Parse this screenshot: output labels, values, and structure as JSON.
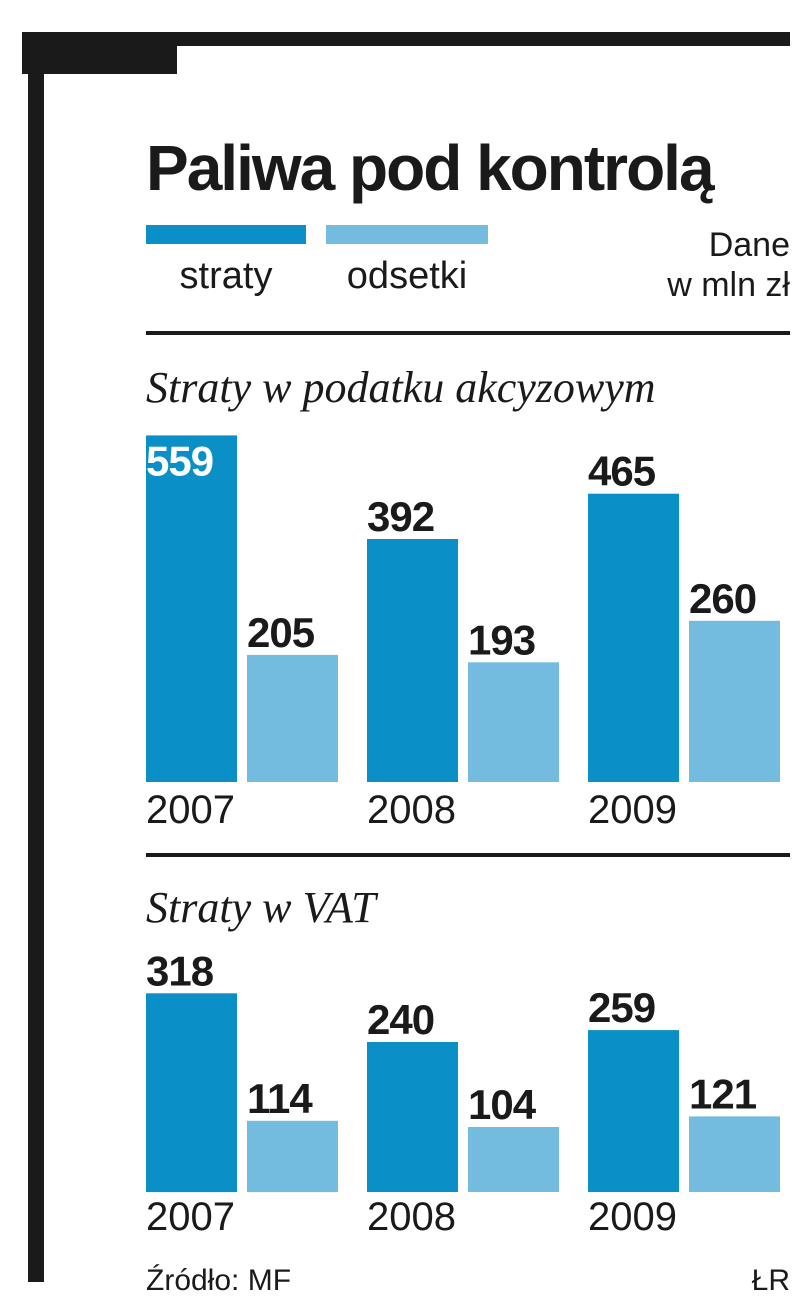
{
  "title": "Paliwa pod kontrolą",
  "legend": {
    "series1": "straty",
    "series2": "odsetki",
    "unit_line1": "Dane",
    "unit_line2": "w mln zł"
  },
  "colors": {
    "straty": "#0a8fc6",
    "odsetki": "#74bbe0",
    "frame": "#1a1a1a"
  },
  "source": "Źródło: MF",
  "credit": "ŁR",
  "chart_data": [
    {
      "type": "bar",
      "title": "Straty w podatku akcyzowym",
      "categories": [
        "2007",
        "2008",
        "2009"
      ],
      "series": [
        {
          "name": "straty",
          "values": [
            559,
            392,
            465
          ]
        },
        {
          "name": "odsetki",
          "values": [
            205,
            193,
            260
          ]
        }
      ]
    },
    {
      "type": "bar",
      "title": "Straty w VAT",
      "categories": [
        "2007",
        "2008",
        "2009"
      ],
      "series": [
        {
          "name": "straty",
          "values": [
            318,
            240,
            259
          ]
        },
        {
          "name": "odsetki",
          "values": [
            114,
            104,
            121
          ]
        }
      ]
    }
  ]
}
